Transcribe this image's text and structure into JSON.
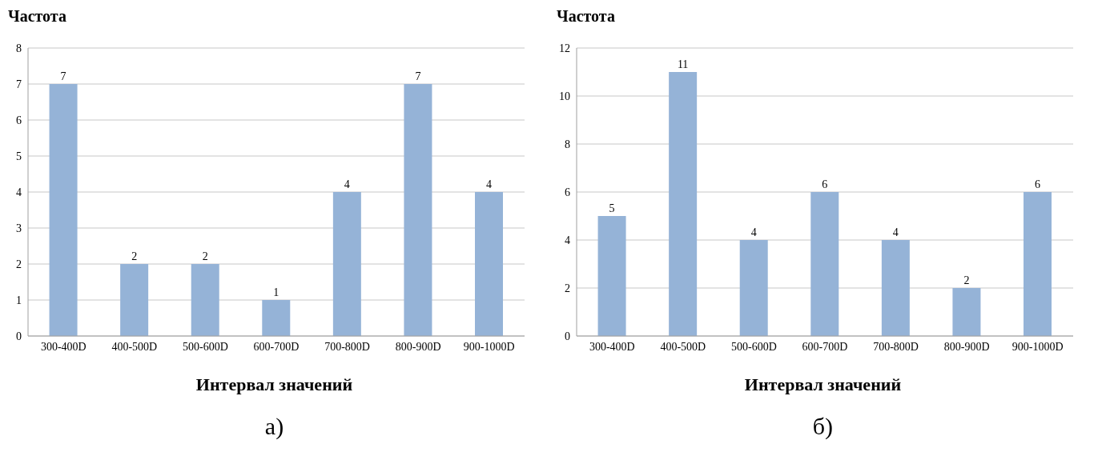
{
  "chart_data": [
    {
      "type": "bar",
      "ylabel": "Частота",
      "xlabel": "Интервал значений",
      "categories": [
        "300-400D",
        "400-500D",
        "500-600D",
        "600-700D",
        "700-800D",
        "800-900D",
        "900-1000D"
      ],
      "values": [
        7,
        2,
        2,
        1,
        4,
        7,
        4
      ],
      "color": "#95b3d7",
      "ylim": [
        0,
        8
      ],
      "yticks": [
        0,
        1,
        2,
        3,
        4,
        5,
        6,
        7,
        8
      ],
      "grid": "y",
      "data_labels": true,
      "annotations": [
        "а)"
      ]
    },
    {
      "type": "bar",
      "ylabel": "Частота",
      "xlabel": "Интервал значений",
      "categories": [
        "300-400D",
        "400-500D",
        "500-600D",
        "600-700D",
        "700-800D",
        "800-900D",
        "900-1000D"
      ],
      "values": [
        5,
        11,
        4,
        6,
        4,
        2,
        6
      ],
      "color": "#95b3d7",
      "ylim": [
        0,
        12
      ],
      "yticks": [
        0,
        2,
        4,
        6,
        8,
        10,
        12
      ],
      "grid": "y",
      "data_labels": true,
      "annotations": [
        "б)"
      ]
    }
  ]
}
